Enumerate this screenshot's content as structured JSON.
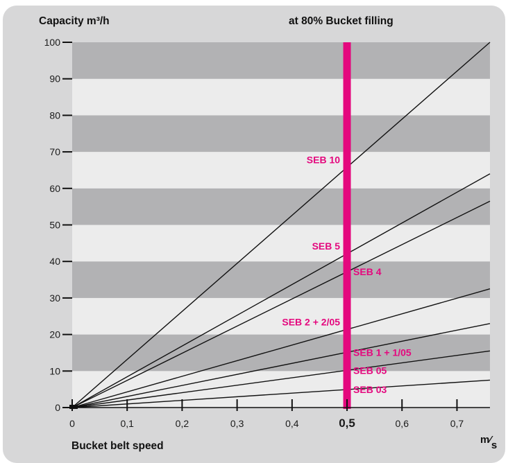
{
  "header": {
    "ylabel": "Capacity m³/h",
    "subtitle": "at 80% Bucket filling"
  },
  "footer": {
    "xlabel": "Bucket belt speed",
    "unit_num": "m",
    "unit_sep": "⁄",
    "unit_den": "s"
  },
  "colors": {
    "band_dark": "#b2b2b4",
    "band_light": "#ececec",
    "marker": "#e4087e",
    "line": "#111111",
    "frame": "#d7d7d8"
  },
  "chart_data": {
    "type": "line",
    "xlabel": "Bucket belt speed",
    "ylabel": "Capacity m³/h",
    "xunit": "m/s",
    "xlim": [
      0,
      0.76
    ],
    "ylim": [
      0,
      100
    ],
    "x_ticks": [
      {
        "value": 0,
        "label": "0"
      },
      {
        "value": 0.1,
        "label": "0,1"
      },
      {
        "value": 0.2,
        "label": "0,2"
      },
      {
        "value": 0.3,
        "label": "0,3"
      },
      {
        "value": 0.4,
        "label": "0,4"
      },
      {
        "value": 0.5,
        "label": "0,5",
        "bold": true
      },
      {
        "value": 0.6,
        "label": "0,6"
      },
      {
        "value": 0.7,
        "label": "0,7"
      }
    ],
    "y_ticks": [
      {
        "value": 0,
        "label": "0"
      },
      {
        "value": 10,
        "label": "10"
      },
      {
        "value": 20,
        "label": "20"
      },
      {
        "value": 30,
        "label": "30"
      },
      {
        "value": 40,
        "label": "40"
      },
      {
        "value": 50,
        "label": "50"
      },
      {
        "value": 60,
        "label": "60"
      },
      {
        "value": 70,
        "label": "70"
      },
      {
        "value": 80,
        "label": "80"
      },
      {
        "value": 90,
        "label": "90"
      },
      {
        "value": 100,
        "label": "100"
      }
    ],
    "marker_x": 0.5,
    "series": [
      {
        "name": "SEB 10",
        "x": [
          0,
          0.76
        ],
        "y": [
          0,
          100
        ],
        "label_side": "left"
      },
      {
        "name": "SEB 5",
        "x": [
          0,
          0.76
        ],
        "y": [
          0,
          64
        ],
        "label_side": "left"
      },
      {
        "name": "SEB 4",
        "x": [
          0,
          0.76
        ],
        "y": [
          0,
          56.5
        ],
        "label_side": "right"
      },
      {
        "name": "SEB 2 + 2/05",
        "x": [
          0,
          0.76
        ],
        "y": [
          0,
          32.5
        ],
        "label_side": "left"
      },
      {
        "name": "SEB 1 + 1/05",
        "x": [
          0,
          0.76
        ],
        "y": [
          0,
          23
        ],
        "label_side": "right"
      },
      {
        "name": "SEB 05",
        "x": [
          0,
          0.76
        ],
        "y": [
          0,
          15.5
        ],
        "label_side": "right"
      },
      {
        "name": "SEB 03",
        "x": [
          0,
          0.76
        ],
        "y": [
          0,
          7.5
        ],
        "label_side": "right"
      }
    ]
  }
}
